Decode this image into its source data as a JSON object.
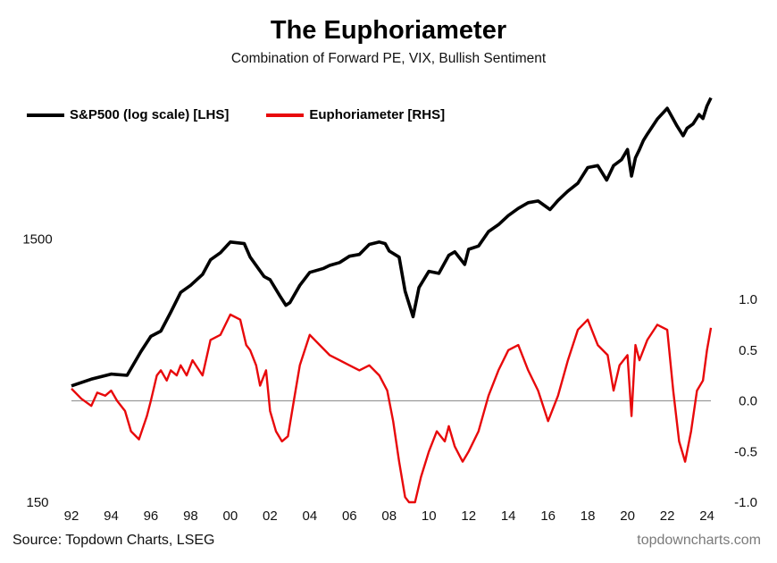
{
  "title": "The Euphoriameter",
  "subtitle": "Combination of Forward PE, VIX, Bullish Sentiment",
  "source": "Source: Topdown Charts, LSEG",
  "brand": "topdowncharts.com",
  "colors": {
    "sp500": "#000000",
    "euphoria": "#e8090b",
    "zero_line": "#9a9a9a"
  },
  "chart_data": {
    "type": "line",
    "x_ticks": [
      "92",
      "94",
      "96",
      "98",
      "00",
      "02",
      "04",
      "06",
      "08",
      "10",
      "12",
      "14",
      "16",
      "18",
      "20",
      "22",
      "24"
    ],
    "xlim": [
      1992,
      2024.2
    ],
    "left_axis": {
      "scale": "log",
      "ylim": [
        150,
        6000
      ],
      "tick_values": [
        150,
        1500
      ],
      "tick_labels": [
        "150",
        "1500"
      ]
    },
    "right_axis": {
      "ylim": [
        -1.0,
        1.0
      ],
      "tick_values": [
        -1.0,
        -0.5,
        0.0,
        0.5,
        1.0
      ],
      "tick_labels": [
        "-1.0",
        "-0.5",
        "0.0",
        "0.5",
        "1.0"
      ]
    },
    "zero_line": 0.0,
    "series": [
      {
        "name": "S&P500 (log scale) [LHS]",
        "axis": "left",
        "x": [
          1992.0,
          1993.0,
          1994.0,
          1994.8,
          1995.5,
          1996.0,
          1996.5,
          1997.0,
          1997.5,
          1998.0,
          1998.6,
          1999.0,
          1999.5,
          2000.0,
          2000.7,
          2001.0,
          2001.7,
          2002.0,
          2002.5,
          2002.8,
          2003.0,
          2003.5,
          2004.0,
          2004.7,
          2005.0,
          2005.5,
          2006.0,
          2006.5,
          2007.0,
          2007.5,
          2007.8,
          2008.0,
          2008.5,
          2008.8,
          2009.2,
          2009.5,
          2010.0,
          2010.5,
          2011.0,
          2011.3,
          2011.8,
          2012.0,
          2012.5,
          2013.0,
          2013.5,
          2014.0,
          2014.5,
          2015.0,
          2015.5,
          2016.1,
          2016.5,
          2017.0,
          2017.5,
          2018.0,
          2018.5,
          2018.95,
          2019.3,
          2019.7,
          2020.0,
          2020.2,
          2020.4,
          2020.6,
          2020.8,
          2021.0,
          2021.5,
          2022.0,
          2022.5,
          2022.8,
          2023.0,
          2023.3,
          2023.6,
          2023.8,
          2024.0,
          2024.2
        ],
        "values": [
          415,
          440,
          460,
          455,
          560,
          640,
          670,
          790,
          940,
          1000,
          1100,
          1250,
          1330,
          1460,
          1440,
          1280,
          1080,
          1050,
          910,
          840,
          860,
          1000,
          1120,
          1160,
          1190,
          1220,
          1290,
          1310,
          1430,
          1460,
          1440,
          1350,
          1280,
          950,
          760,
          980,
          1130,
          1110,
          1300,
          1340,
          1200,
          1370,
          1410,
          1600,
          1700,
          1840,
          1960,
          2060,
          2090,
          1940,
          2100,
          2280,
          2440,
          2800,
          2850,
          2510,
          2850,
          3000,
          3280,
          2600,
          3050,
          3280,
          3550,
          3750,
          4280,
          4700,
          4020,
          3700,
          3950,
          4100,
          4450,
          4300,
          4800,
          5150
        ]
      },
      {
        "name": "Euphoriameter [RHS]",
        "axis": "right",
        "x": [
          1992.0,
          1992.5,
          1993.0,
          1993.3,
          1993.7,
          1994.0,
          1994.3,
          1994.7,
          1995.0,
          1995.4,
          1995.8,
          1996.0,
          1996.3,
          1996.5,
          1996.8,
          1997.0,
          1997.3,
          1997.5,
          1997.8,
          1998.1,
          1998.6,
          1999.0,
          1999.5,
          2000.0,
          2000.5,
          2000.8,
          2001.0,
          2001.3,
          2001.5,
          2001.8,
          2002.0,
          2002.3,
          2002.6,
          2002.9,
          2003.2,
          2003.5,
          2004.0,
          2004.5,
          2005.0,
          2005.5,
          2006.0,
          2006.5,
          2007.0,
          2007.5,
          2007.9,
          2008.2,
          2008.5,
          2008.8,
          2009.0,
          2009.1,
          2009.3,
          2009.6,
          2010.0,
          2010.4,
          2010.8,
          2011.0,
          2011.3,
          2011.7,
          2012.0,
          2012.5,
          2013.0,
          2013.5,
          2014.0,
          2014.5,
          2015.0,
          2015.5,
          2016.0,
          2016.5,
          2017.0,
          2017.5,
          2018.0,
          2018.5,
          2019.0,
          2019.3,
          2019.6,
          2020.0,
          2020.2,
          2020.4,
          2020.6,
          2021.0,
          2021.5,
          2022.0,
          2022.3,
          2022.6,
          2022.9,
          2023.2,
          2023.5,
          2023.8,
          2024.0,
          2024.2
        ],
        "values": [
          0.12,
          0.02,
          -0.05,
          0.08,
          0.05,
          0.1,
          0.0,
          -0.1,
          -0.3,
          -0.38,
          -0.15,
          0.0,
          0.25,
          0.3,
          0.2,
          0.3,
          0.25,
          0.35,
          0.25,
          0.4,
          0.25,
          0.6,
          0.65,
          0.85,
          0.8,
          0.55,
          0.5,
          0.35,
          0.15,
          0.3,
          -0.1,
          -0.3,
          -0.4,
          -0.35,
          0.0,
          0.35,
          0.65,
          0.55,
          0.45,
          0.4,
          0.35,
          0.3,
          0.35,
          0.25,
          0.1,
          -0.2,
          -0.6,
          -0.95,
          -1.05,
          -1.15,
          -1.05,
          -0.75,
          -0.5,
          -0.3,
          -0.4,
          -0.25,
          -0.45,
          -0.6,
          -0.5,
          -0.3,
          0.05,
          0.3,
          0.5,
          0.55,
          0.3,
          0.1,
          -0.2,
          0.05,
          0.4,
          0.7,
          0.8,
          0.55,
          0.45,
          0.1,
          0.35,
          0.45,
          -0.15,
          0.55,
          0.4,
          0.6,
          0.75,
          0.7,
          0.1,
          -0.4,
          -0.6,
          -0.3,
          0.1,
          0.2,
          0.5,
          0.72
        ]
      }
    ]
  }
}
